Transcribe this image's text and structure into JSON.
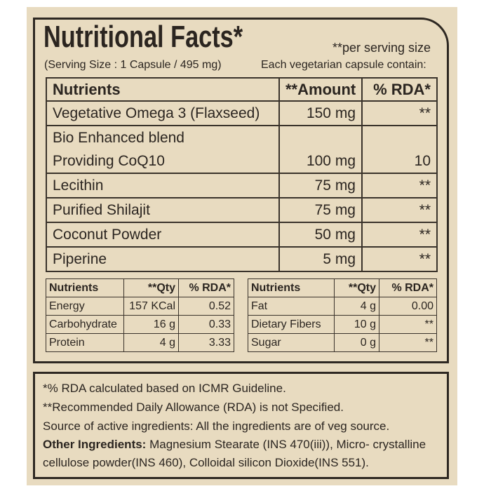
{
  "header": {
    "title": "Nutritional Facts*",
    "note": "**per serving size",
    "serving": "(Serving Size : 1 Capsule / 495 mg)",
    "capsule": "Each vegetarian capsule contain:"
  },
  "main_table": {
    "columns": [
      "Nutrients",
      "**Amount",
      "% RDA*"
    ],
    "rows": [
      {
        "nutrient": [
          "Vegetative Omega 3 (Flaxseed)"
        ],
        "amount": "150 mg",
        "rda": "**"
      },
      {
        "nutrient": [
          "Bio Enhanced blend",
          "Providing CoQ10"
        ],
        "amount": "100 mg",
        "rda": "10"
      },
      {
        "nutrient": [
          "Lecithin"
        ],
        "amount": "75 mg",
        "rda": "**"
      },
      {
        "nutrient": [
          "Purified Shilajit"
        ],
        "amount": "75 mg",
        "rda": "**"
      },
      {
        "nutrient": [
          "Coconut Powder"
        ],
        "amount": "50 mg",
        "rda": "**"
      },
      {
        "nutrient": [
          "Piperine"
        ],
        "amount": "5 mg",
        "rda": "**"
      }
    ]
  },
  "left_table": {
    "columns": [
      "Nutrients",
      "**Qty",
      "% RDA*"
    ],
    "rows": [
      [
        "Energy",
        "157 KCal",
        "0.52"
      ],
      [
        "Carbohydrate",
        "16 g",
        "0.33"
      ],
      [
        "Protein",
        "4 g",
        "3.33"
      ]
    ]
  },
  "right_table": {
    "columns": [
      "Nutrients",
      "**Qty",
      "% RDA*"
    ],
    "rows": [
      [
        "Fat",
        "4 g",
        "0.00"
      ],
      [
        "Dietary Fibers",
        "10 g",
        "**"
      ],
      [
        "Sugar",
        "0 g",
        "**"
      ]
    ]
  },
  "footer": {
    "lines": [
      "*% RDA calculated based on ICMR Guideline.",
      "**Recommended Daily Allowance (RDA) is not Specified.",
      "Source of active ingredients: All the ingredients are of veg source."
    ],
    "other_label": "Other Ingredients:",
    "other_text": [
      "Magnesium Stearate (INS 470(iii)), Micro- crystalline",
      "cellulose powder(INS 460), Colloidal silicon Dioxide(INS 551)."
    ]
  }
}
